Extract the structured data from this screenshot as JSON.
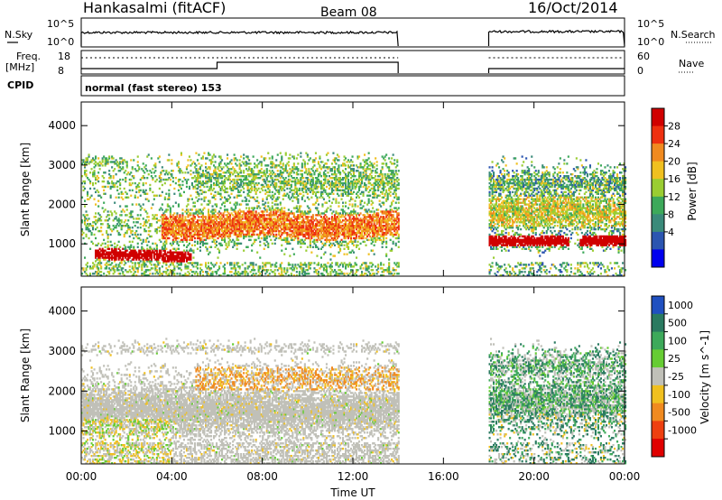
{
  "header": {
    "station": "Hankasalmi (fitACF)",
    "beam": "Beam 08",
    "date": "16/Oct/2014"
  },
  "summary_panels": {
    "nsky_label": "N.Sky",
    "noise_left_top": "10^5",
    "noise_left_bottom": "10^0",
    "noise_right_top": "10^5",
    "noise_right_bottom": "10^0",
    "nsearch_label": "N.Search",
    "freq_label_1": "Freq.",
    "freq_label_2": "[MHz]",
    "freq_top": "18",
    "freq_bottom": "8",
    "nave_top": "60",
    "nave_bottom": "0",
    "nave_label": "Nave",
    "cpid_label": "CPID",
    "cpid_value": "normal (fast stereo) 153"
  },
  "chart_data": [
    {
      "type": "heatmap",
      "name": "power",
      "ylabel": "Slant Range [km]",
      "xlabel": "",
      "xlim": [
        0,
        24
      ],
      "ylim": [
        180,
        4600
      ],
      "yticks": [
        "1000",
        "2000",
        "3000",
        "4000"
      ],
      "colorbar": {
        "label": "Power [dB]",
        "ticks": [
          "4",
          "8",
          "12",
          "16",
          "20",
          "24",
          "28"
        ],
        "colors": [
          "#0000ee",
          "#2b55b0",
          "#3a8a7a",
          "#3da95a",
          "#9acd32",
          "#f0c020",
          "#f08a20",
          "#ee3010",
          "#d00000"
        ]
      },
      "data_gaps_hours": [
        [
          14.0,
          18.0
        ]
      ],
      "echo_regions": [
        {
          "t": [
            0.0,
            14.0
          ],
          "range_km": [
            300,
            3200
          ],
          "level": "mixed 4-20 dB"
        },
        {
          "t": [
            1.0,
            4.5
          ],
          "range_km": [
            600,
            1000
          ],
          "level": "28 dB"
        },
        {
          "t": [
            4.0,
            14.0
          ],
          "range_km": [
            1200,
            2000
          ],
          "level": "16-24 dB"
        },
        {
          "t": [
            18.0,
            24.0
          ],
          "range_km": [
            800,
            3000
          ],
          "level": "mixed 8-28 dB"
        },
        {
          "t": [
            18.5,
            21.5
          ],
          "range_km": [
            900,
            1300
          ],
          "level": "28 dB"
        },
        {
          "t": [
            22.0,
            24.0
          ],
          "range_km": [
            700,
            1300
          ],
          "level": "28 dB"
        }
      ]
    },
    {
      "type": "heatmap",
      "name": "velocity",
      "ylabel": "Slant Range [km]",
      "xlabel": "Time UT",
      "xlim": [
        0,
        24
      ],
      "ylim": [
        180,
        4600
      ],
      "xticks": [
        "00:00",
        "04:00",
        "08:00",
        "12:00",
        "16:00",
        "20:00",
        "00:00"
      ],
      "yticks": [
        "1000",
        "2000",
        "3000",
        "4000"
      ],
      "colorbar": {
        "label": "Velocity [m s^-1]",
        "ticks": [
          "1000",
          "500",
          "100",
          "25",
          "-25",
          "-100",
          "-500",
          "-1000"
        ],
        "colors": [
          "#2050c0",
          "#2a7a60",
          "#3da95a",
          "#66cc33",
          "#c0c0b8",
          "#f0c020",
          "#f08a20",
          "#ee4010",
          "#e00000"
        ]
      },
      "data_gaps_hours": [
        [
          14.0,
          18.0
        ]
      ],
      "echo_regions": [
        {
          "t": [
            0.0,
            14.0
          ],
          "range_km": [
            300,
            3200
          ],
          "level": "-25 to 25"
        },
        {
          "t": [
            5.0,
            12.5
          ],
          "range_km": [
            2000,
            2600
          ],
          "level": "-100 to -500"
        },
        {
          "t": [
            18.0,
            24.0
          ],
          "range_km": [
            500,
            3000
          ],
          "level": "mixed, 100 to 500 and -100"
        }
      ]
    }
  ]
}
